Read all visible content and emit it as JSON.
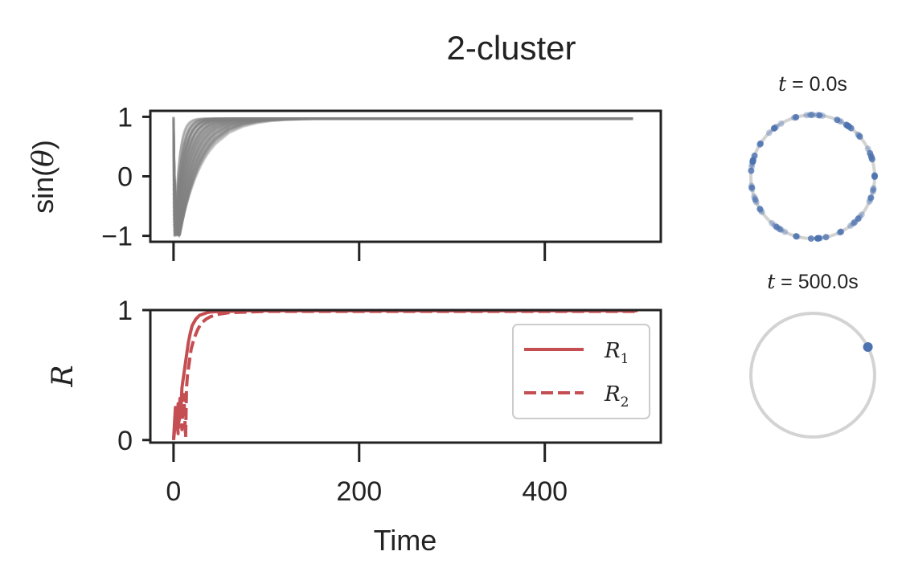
{
  "title": "2-cluster",
  "chart_data": [
    {
      "id": "sin-theta",
      "type": "line",
      "title": "",
      "xlabel": "",
      "ylabel_prefix": "sin(",
      "ylabel_var": "θ",
      "ylabel_suffix": ")",
      "xlim": [
        -25,
        525
      ],
      "ylim": [
        -1.1,
        1.1
      ],
      "yticks": [
        1,
        0,
        -1
      ],
      "ytick_labels": [
        "1",
        "0",
        "−1"
      ],
      "xticks": [
        0,
        200,
        400
      ],
      "n_traces": 40,
      "t_end": 500,
      "steady_value": 0.97,
      "color": "#808080"
    },
    {
      "id": "order-parameter",
      "type": "line",
      "title": "",
      "xlabel": "Time",
      "ylabel": "R",
      "xlim": [
        -25,
        525
      ],
      "ylim": [
        -0.02,
        1.0
      ],
      "yticks": [
        1,
        0
      ],
      "ytick_labels": [
        "1",
        "0"
      ],
      "xticks": [
        0,
        200,
        400
      ],
      "xtick_labels": [
        "0",
        "200",
        "400"
      ],
      "legend_position": "center-right",
      "series": [
        {
          "name": "R",
          "sub": "1",
          "style": "solid",
          "color": "#c44e52",
          "x": [
            0,
            2,
            4,
            5,
            6,
            7,
            8,
            9,
            10,
            12,
            14,
            16,
            18,
            20,
            24,
            28,
            32,
            36,
            40,
            50,
            60,
            80,
            100,
            150,
            200,
            300,
            400,
            500
          ],
          "y": [
            0.0,
            0.25,
            0.1,
            0.28,
            0.15,
            0.32,
            0.22,
            0.4,
            0.45,
            0.55,
            0.65,
            0.75,
            0.82,
            0.88,
            0.93,
            0.96,
            0.97,
            0.98,
            0.985,
            0.99,
            0.99,
            0.995,
            0.995,
            0.995,
            0.995,
            0.995,
            0.995,
            0.995
          ]
        },
        {
          "name": "R",
          "sub": "2",
          "style": "dashed",
          "color": "#c44e52",
          "x": [
            0,
            3,
            5,
            7,
            9,
            11,
            13,
            14,
            15,
            17,
            19,
            22,
            26,
            30,
            35,
            40,
            50,
            60,
            80,
            100,
            150,
            200,
            300,
            400,
            500
          ],
          "y": [
            0.0,
            0.2,
            0.05,
            0.3,
            0.08,
            0.35,
            0.02,
            0.4,
            0.5,
            0.6,
            0.7,
            0.78,
            0.85,
            0.9,
            0.93,
            0.95,
            0.97,
            0.98,
            0.985,
            0.99,
            0.99,
            0.99,
            0.99,
            0.99,
            0.99
          ]
        }
      ]
    },
    {
      "id": "phase-circle-initial",
      "type": "scatter",
      "title_var": "t",
      "title_value": " = 0.0s",
      "n_points": 100,
      "point_color": "#4c72b0",
      "circle_color": "#d3d3d3",
      "distribution": "spread around circle"
    },
    {
      "id": "phase-circle-final",
      "type": "scatter",
      "title_var": "t",
      "title_value": " = 500.0s",
      "point_angles_deg": [
        -27
      ],
      "point_color": "#4c72b0",
      "circle_color": "#d3d3d3"
    }
  ]
}
